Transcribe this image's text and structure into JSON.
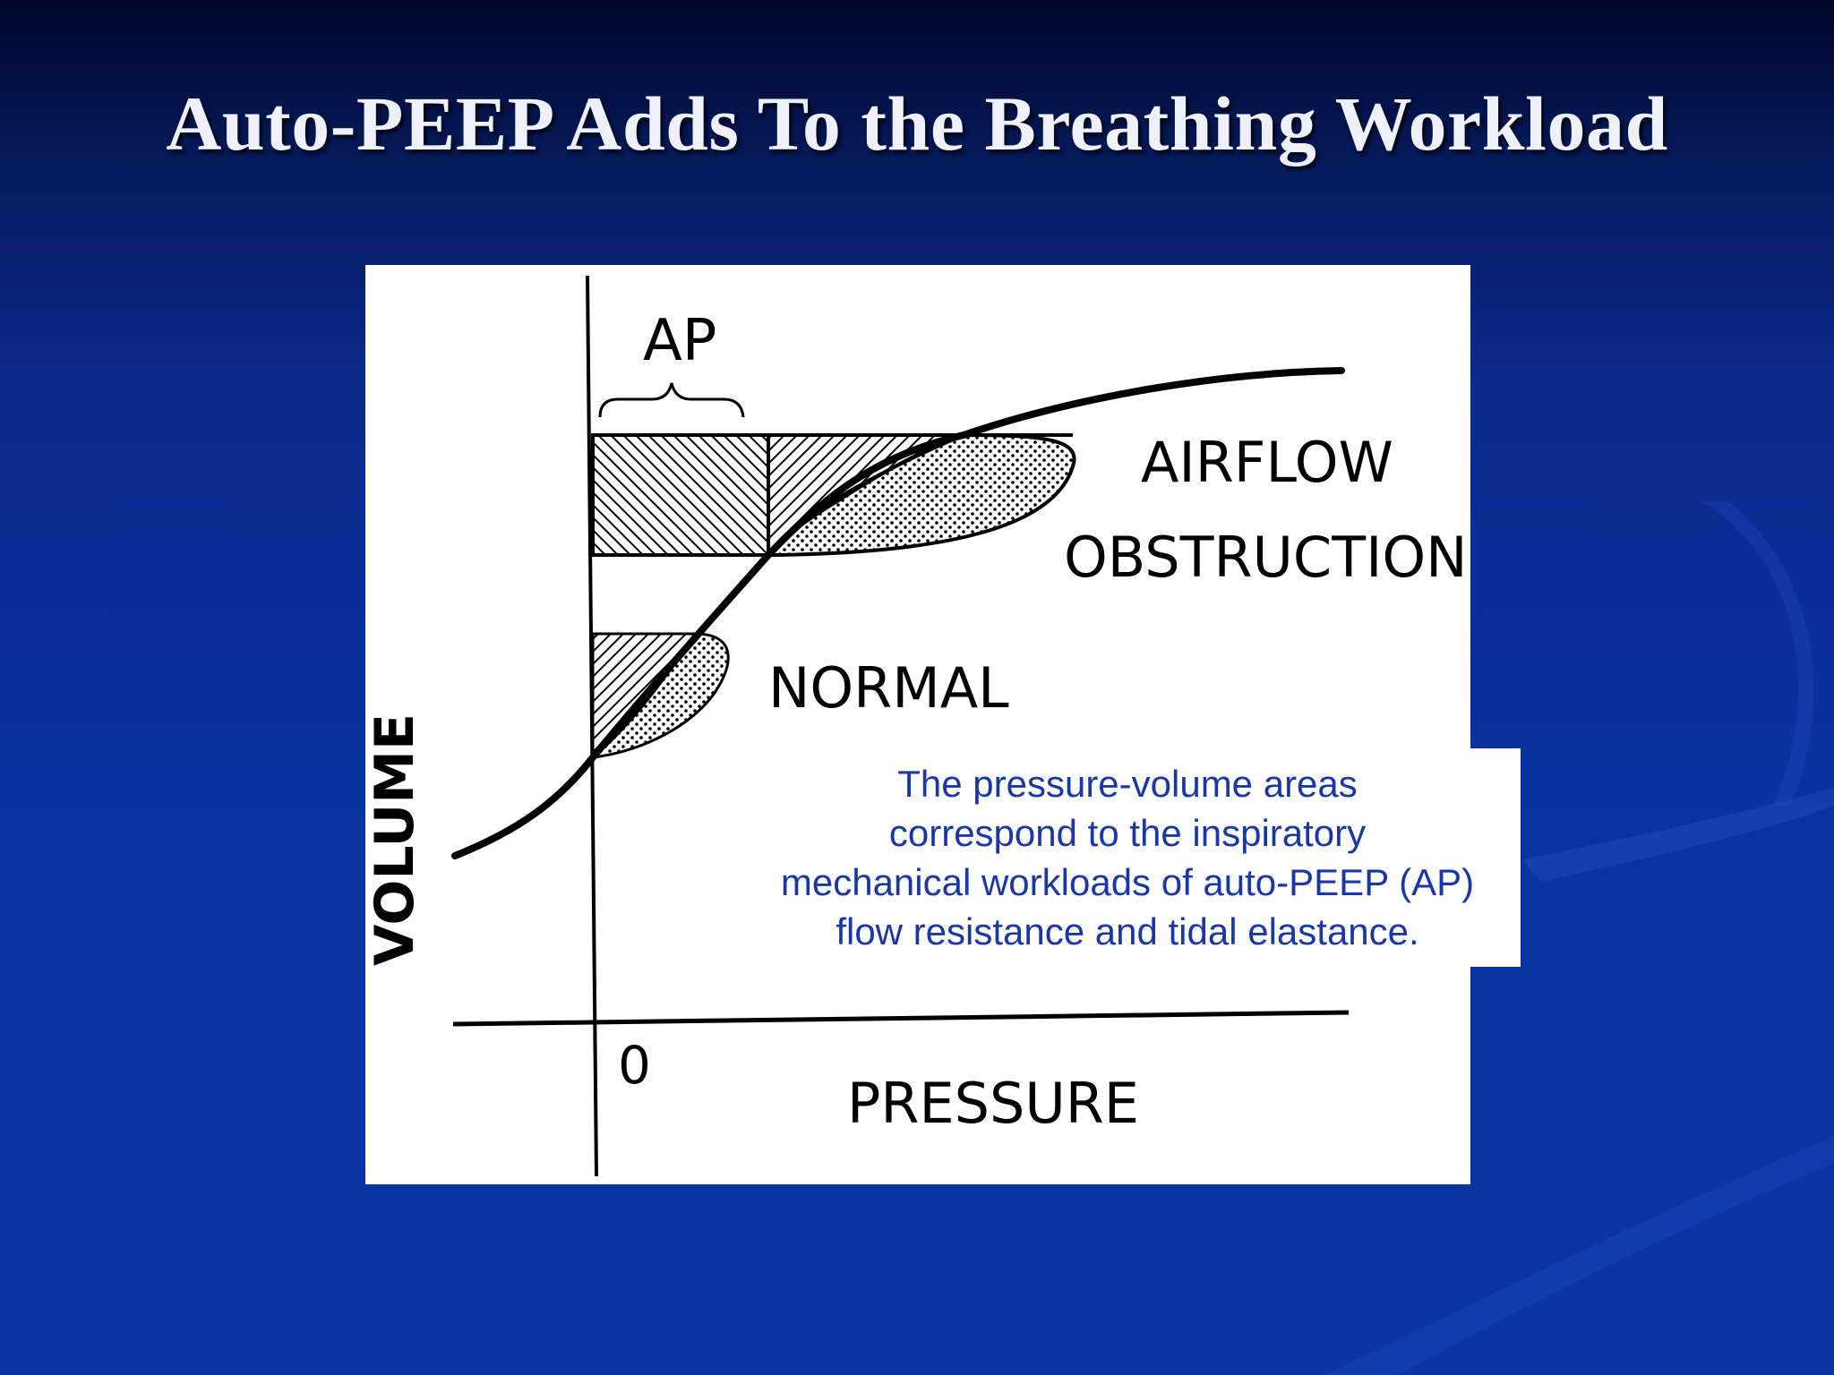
{
  "slide": {
    "title": "Auto-PEEP Adds To the Breathing Workload"
  },
  "diagram": {
    "y_axis_label": "VOLUME",
    "x_axis_label": "PRESSURE",
    "origin_label": "0",
    "bracket_label": "AP",
    "obstruction_label_line1": "AIRFLOW",
    "obstruction_label_line2": "OBSTRUCTION",
    "normal_label": "NORMAL"
  },
  "caption": {
    "lines": [
      "The pressure-volume areas",
      "correspond to the inspiratory",
      "mechanical workloads of auto-PEEP (AP)",
      "flow resistance and tidal elastance."
    ]
  },
  "colors": {
    "slide_background": "#0a35a2",
    "title_text": "#eef0fa",
    "caption_text": "#1a37a8",
    "figure_background": "#ffffff"
  }
}
